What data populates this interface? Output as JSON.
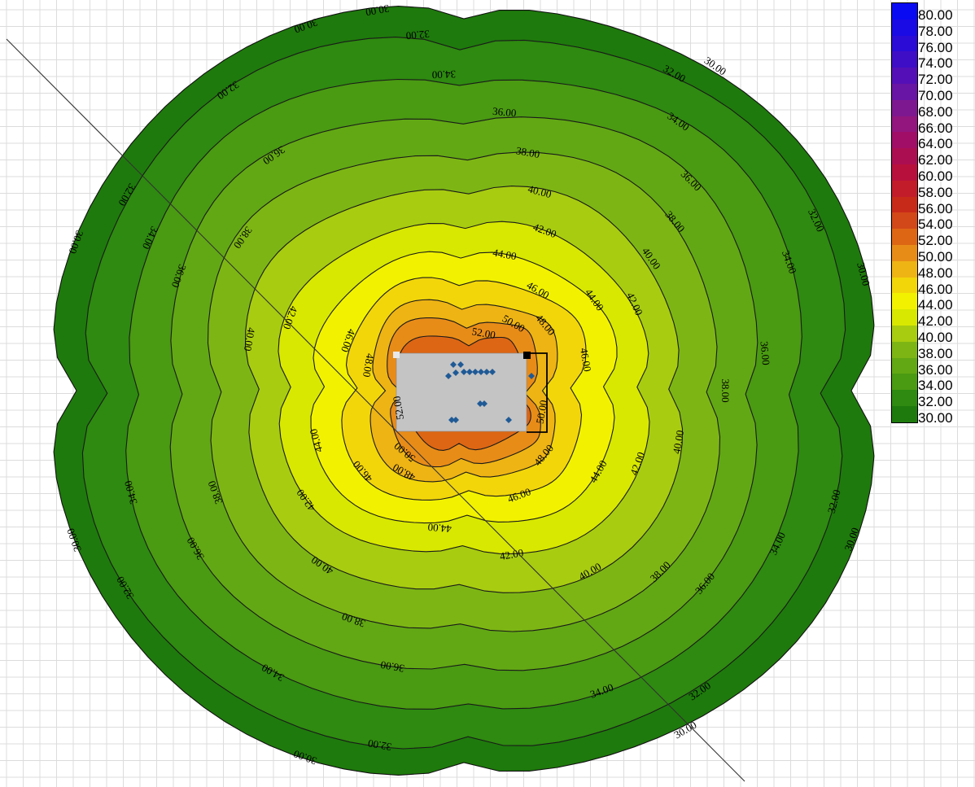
{
  "chart_data": {
    "type": "contour",
    "title": "",
    "xlabel": "",
    "ylabel": "",
    "grid": true,
    "legend_position": "top-right",
    "levels": [
      30.0,
      32.0,
      34.0,
      36.0,
      38.0,
      40.0,
      42.0,
      44.0,
      46.0,
      48.0,
      50.0,
      52.0,
      54.0,
      56.0,
      58.0,
      60.0,
      62.0,
      64.0,
      66.0,
      68.0,
      70.0,
      72.0,
      74.0,
      76.0,
      78.0,
      80.0
    ],
    "level_labels": [
      "30.00",
      "32.00",
      "34.00",
      "36.00",
      "38.00",
      "40.00",
      "42.00",
      "44.00",
      "46.00",
      "48.00",
      "50.00",
      "52.00",
      "54.00",
      "56.00",
      "58.00",
      "60.00",
      "62.00",
      "64.00",
      "66.00",
      "68.00",
      "70.00",
      "72.00",
      "74.00",
      "76.00",
      "78.00",
      "80.00"
    ],
    "level_colors": [
      "#1e7a0c",
      "#2e8a10",
      "#4a9a12",
      "#62a814",
      "#7db614",
      "#a8cc10",
      "#d8e800",
      "#f2f200",
      "#f3d60a",
      "#eeb414",
      "#e88c18",
      "#dd6614",
      "#d24818",
      "#c82a1a",
      "#c21c2a",
      "#b8103c",
      "#ac0e52",
      "#a00e68",
      "#92167e",
      "#7e1890",
      "#6814a4",
      "#5410b6",
      "#3e0ec6",
      "#2a0cd6",
      "#1a0ae4",
      "#0a0af2"
    ],
    "plotted_contours": [
      "30.00",
      "32.00",
      "34.00",
      "36.00",
      "38.00",
      "40.00",
      "42.00",
      "44.00",
      "46.00",
      "48.00",
      "50.00",
      "52.00"
    ],
    "building_color": "#c4c4c4",
    "marker_color": "#1f5a96"
  }
}
